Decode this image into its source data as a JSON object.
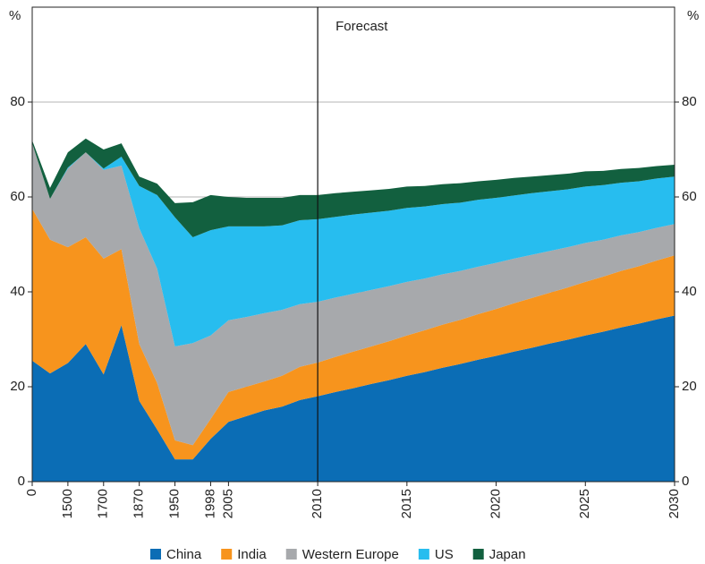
{
  "chart_data": {
    "type": "stacked_area",
    "ylabel": "%",
    "y2label": "%",
    "annotation": "Forecast",
    "forecast_index": 16,
    "categories": [
      "0",
      null,
      "1500",
      null,
      "1700",
      null,
      "1870",
      null,
      "1950",
      null,
      "1998",
      "2005",
      null,
      null,
      null,
      null,
      "2010",
      null,
      null,
      null,
      null,
      "2015",
      null,
      null,
      null,
      null,
      "2020",
      null,
      null,
      null,
      null,
      "2025",
      null,
      null,
      null,
      null,
      "2030"
    ],
    "series": [
      {
        "name": "China",
        "color": "#0b6db5",
        "values": [
          25.5,
          22.8,
          25,
          29,
          22.6,
          33,
          17,
          11,
          4.7,
          4.7,
          9,
          12.6,
          13.8,
          15,
          15.8,
          17.2,
          18,
          18.9,
          19.7,
          20.6,
          21.4,
          22.3,
          23.1,
          24.0,
          24.8,
          25.7,
          26.5,
          27.4,
          28.2,
          29.1,
          29.9,
          30.8,
          31.6,
          32.5,
          33.3,
          34.2,
          35.0
        ]
      },
      {
        "name": "India",
        "color": "#f7941d",
        "values": [
          32,
          28.2,
          24.4,
          22.5,
          24.4,
          16,
          12,
          9.8,
          4,
          3,
          4.2,
          6.3,
          6.2,
          6.1,
          6.5,
          7,
          7.1,
          7.4,
          7.7,
          7.9,
          8.2,
          8.5,
          8.8,
          9.1,
          9.3,
          9.6,
          9.9,
          10.2,
          10.5,
          10.7,
          11.0,
          11.3,
          11.6,
          11.9,
          12.1,
          12.4,
          12.7
        ]
      },
      {
        "name": "Western Europe",
        "color": "#a7a9ac",
        "values": [
          13.8,
          8.6,
          16.6,
          17.9,
          18.7,
          17.6,
          24.4,
          24.1,
          19.8,
          21.5,
          17.6,
          15.1,
          14.7,
          14.4,
          13.9,
          13.2,
          12.8,
          12.5,
          12.2,
          11.9,
          11.6,
          11.3,
          10.9,
          10.6,
          10.3,
          10.0,
          9.7,
          9.4,
          9.1,
          8.8,
          8.5,
          8.2,
          7.8,
          7.5,
          7.2,
          6.9,
          6.6
        ]
      },
      {
        "name": "US",
        "color": "#27bdef",
        "values": [
          0,
          0,
          0.2,
          0,
          0.3,
          1.9,
          8.9,
          15.5,
          27.2,
          22.3,
          22.2,
          19.8,
          19.1,
          18.3,
          17.8,
          17.7,
          17.4,
          17.0,
          16.7,
          16.3,
          15.9,
          15.6,
          15.2,
          14.8,
          14.4,
          14.1,
          13.7,
          13.3,
          13.0,
          12.6,
          12.2,
          11.9,
          11.5,
          11.1,
          10.7,
          10.4,
          10.0
        ]
      },
      {
        "name": "Japan",
        "color": "#12603f",
        "values": [
          0.6,
          2.3,
          3.2,
          2.9,
          4,
          2.8,
          2,
          2.4,
          3,
          7.4,
          7.4,
          6.2,
          6.0,
          6.0,
          5.8,
          5.3,
          5.1,
          5.0,
          4.8,
          4.7,
          4.6,
          4.5,
          4.3,
          4.2,
          4.1,
          3.9,
          3.8,
          3.7,
          3.5,
          3.4,
          3.3,
          3.2,
          3.0,
          2.9,
          2.8,
          2.6,
          2.5
        ]
      }
    ],
    "ylim": [
      0,
      100
    ],
    "yticks": [
      0,
      20,
      40,
      60,
      80
    ],
    "y2lim": [
      0,
      100
    ],
    "y2ticks": [
      0,
      20,
      40,
      60,
      80
    ],
    "grid": true,
    "legend": "bottom"
  }
}
